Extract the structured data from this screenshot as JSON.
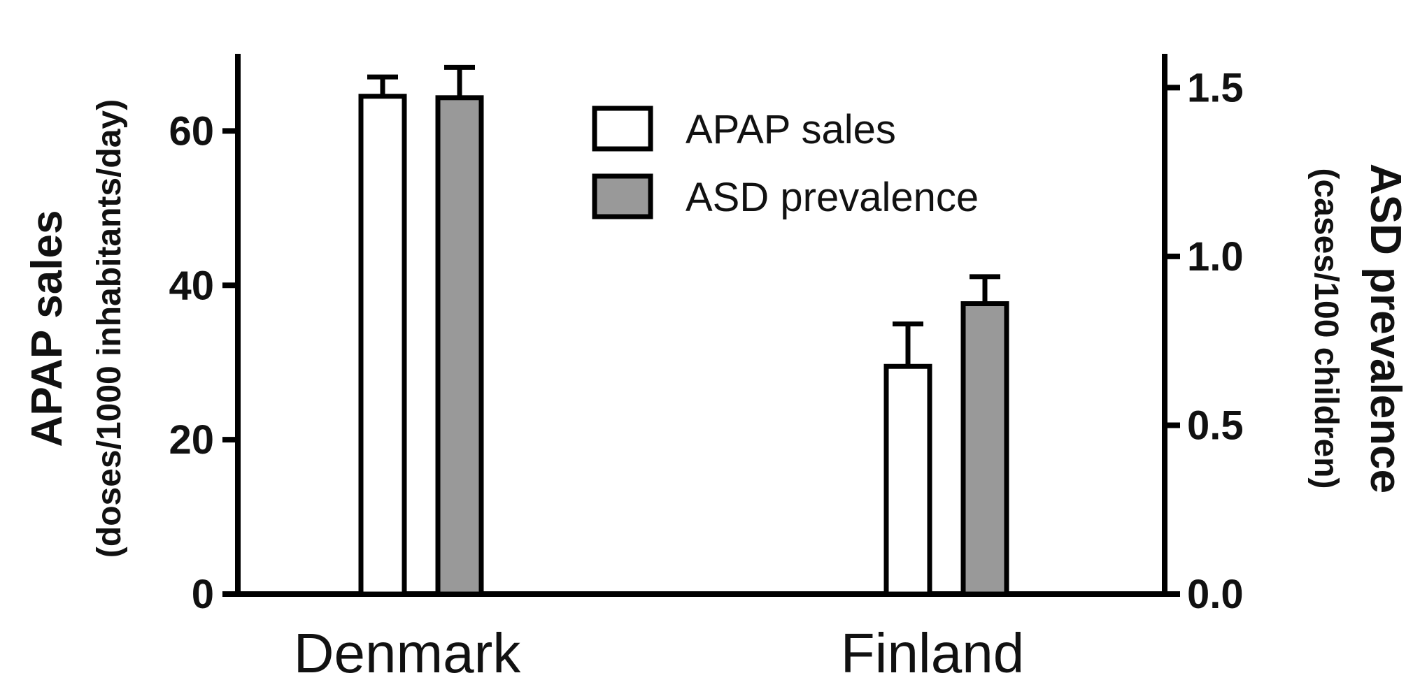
{
  "chart_data": {
    "type": "bar",
    "categories": [
      "Denmark",
      "Finland"
    ],
    "series": [
      {
        "name": "APAP sales",
        "axis": "left",
        "color": "#ffffff",
        "values": [
          64.5,
          29.5
        ],
        "errors": [
          2.5,
          5.5
        ]
      },
      {
        "name": "ASD prevalence",
        "axis": "right",
        "color": "#999999",
        "values": [
          1.47,
          0.86
        ],
        "errors": [
          0.09,
          0.08
        ]
      }
    ],
    "left_axis": {
      "label": "APAP sales",
      "sublabel": "(doses/1000 inhabitants/day)",
      "ylim": [
        0,
        70
      ],
      "ticks": [
        "0",
        "20",
        "40",
        "60"
      ]
    },
    "right_axis": {
      "label": "ASD prevalence",
      "sublabel": "(cases/100 children)",
      "ylim": [
        0,
        1.6
      ],
      "ticks": [
        "0.0",
        "0.5",
        "1.0",
        "1.5"
      ]
    },
    "legend": {
      "position": "top-center",
      "items": [
        "APAP sales",
        "ASD prevalence"
      ]
    },
    "grid": false
  }
}
